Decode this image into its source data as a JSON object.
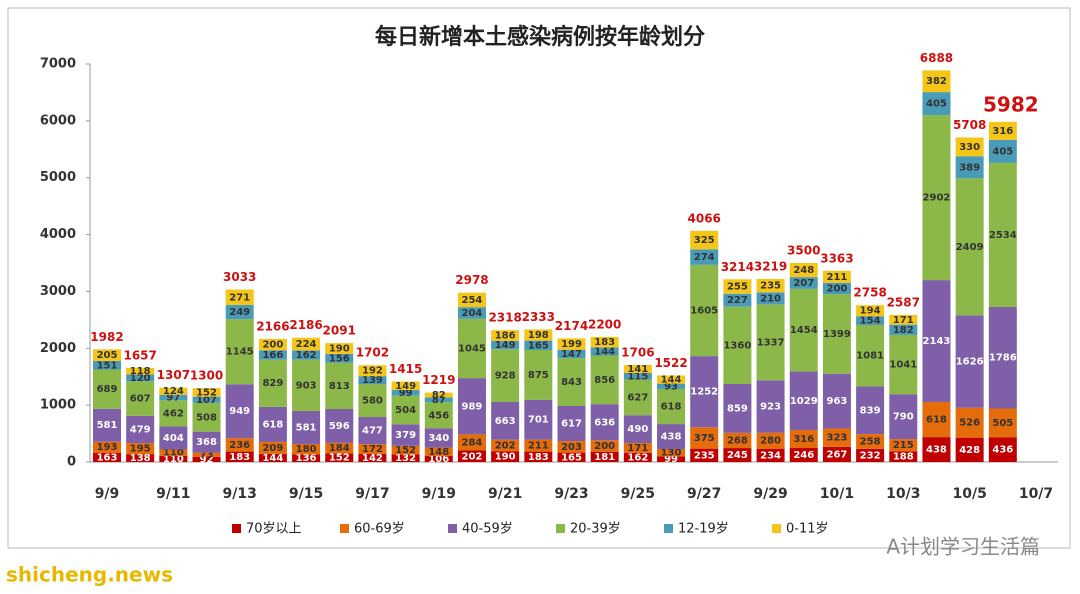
{
  "chart_data": {
    "type": "stacked_bar",
    "title": "每日新增本土感染病例按年龄划分",
    "categories": [
      "9/9",
      null,
      "9/11",
      null,
      "9/13",
      null,
      "9/15",
      null,
      "9/17",
      null,
      "9/19",
      null,
      "9/21",
      null,
      "9/23",
      null,
      "9/25",
      null,
      "9/27",
      null,
      "9/29",
      null,
      "10/1",
      null,
      "10/3",
      null,
      "10/5",
      null,
      "10/7"
    ],
    "series": [
      {
        "name": "70岁以上",
        "color": "#c00000",
        "values": [
          163,
          138,
          110,
          92,
          183,
          144,
          136,
          152,
          142,
          132,
          106,
          202,
          190,
          183,
          165,
          181,
          162,
          99,
          235,
          245,
          234,
          246,
          267,
          232,
          188,
          438,
          428,
          436,
          null
        ]
      },
      {
        "name": "60-69岁",
        "color": "#e46c0a",
        "values": [
          193,
          195,
          110,
          73,
          236,
          209,
          180,
          184,
          172,
          152,
          148,
          284,
          202,
          211,
          203,
          200,
          171,
          130,
          375,
          268,
          280,
          316,
          323,
          258,
          215,
          618,
          526,
          505,
          null
        ]
      },
      {
        "name": "40-59岁",
        "color": "#7e5fa8",
        "values": [
          581,
          479,
          404,
          368,
          949,
          618,
          581,
          596,
          477,
          379,
          340,
          989,
          663,
          701,
          617,
          636,
          490,
          438,
          1252,
          859,
          923,
          1029,
          963,
          839,
          790,
          2143,
          1626,
          1786,
          null
        ]
      },
      {
        "name": "20-39岁",
        "color": "#8cb84a",
        "values": [
          689,
          607,
          462,
          508,
          1145,
          829,
          903,
          813,
          580,
          504,
          456,
          1045,
          928,
          875,
          843,
          856,
          627,
          618,
          1605,
          1360,
          1337,
          1454,
          1399,
          1081,
          1041,
          2902,
          2409,
          2534,
          null
        ]
      },
      {
        "name": "12-19岁",
        "color": "#4a9bb8",
        "values": [
          151,
          120,
          97,
          107,
          249,
          166,
          162,
          156,
          139,
          99,
          87,
          204,
          149,
          165,
          147,
          144,
          115,
          93,
          274,
          227,
          210,
          207,
          200,
          154,
          182,
          405,
          389,
          405,
          null
        ]
      },
      {
        "name": "0-11岁",
        "color": "#f5c518",
        "values": [
          205,
          118,
          124,
          152,
          271,
          200,
          224,
          190,
          192,
          149,
          82,
          254,
          186,
          198,
          199,
          183,
          141,
          144,
          325,
          255,
          235,
          248,
          211,
          194,
          171,
          382,
          330,
          316,
          null
        ]
      }
    ],
    "totals": [
      1982,
      1657,
      1307,
      1300,
      3033,
      2166,
      2186,
      2091,
      1702,
      1415,
      1219,
      2978,
      2318,
      2333,
      2174,
      2200,
      1706,
      1522,
      4066,
      3214,
      3219,
      3500,
      3363,
      2758,
      2587,
      6888,
      5708,
      5982,
      null
    ],
    "ylim": [
      0,
      7000
    ],
    "yticks": [
      0,
      1000,
      2000,
      3000,
      4000,
      5000,
      6000,
      7000
    ],
    "grid": false,
    "watermarks": [
      "A计划学习生活篇",
      "shicheng.news"
    ]
  }
}
